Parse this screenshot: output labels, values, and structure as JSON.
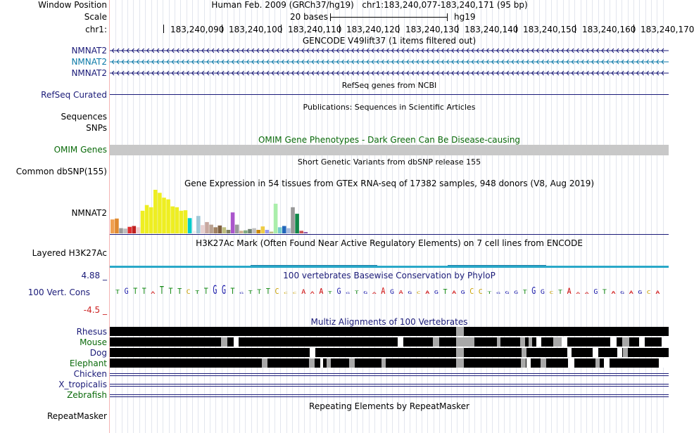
{
  "header": {
    "assembly": "Human Feb. 2009 (GRCh37/hg19)",
    "position": "chr1:183,240,077-183,240,171 (95 bp)",
    "scale_text": "20 bases",
    "scale_db": "hg19",
    "chrom_label": "chr1:",
    "ticks": [
      "183,240,090",
      "183,240,100",
      "183,240,110",
      "183,240,120",
      "183,240,130",
      "183,240,140",
      "183,240,150",
      "183,240,160",
      "183,240,170"
    ]
  },
  "left_labels": {
    "window_position": "Window Position",
    "scale": "Scale",
    "chr": "chr1:",
    "nmnat2_1": "NMNAT2",
    "nmnat2_2": "NMNAT2",
    "nmnat2_3": "NMNAT2",
    "refseq": "RefSeq Curated",
    "sequences": "Sequences",
    "snps": "SNPs",
    "omim": "OMIM Genes",
    "common_dbsnp": "Common dbSNP(155)",
    "gtex_gene": "NMNAT2",
    "h3k27ac": "Layered H3K27Ac",
    "cons_max": "4.88 _",
    "cons_label": "100 Vert. Cons",
    "cons_min": "-4.5 _",
    "species": [
      "Rhesus",
      "Mouse",
      "Dog",
      "Elephant",
      "Chicken",
      "X_tropicalis",
      "Zebrafish"
    ],
    "repeatmasker": "RepeatMasker"
  },
  "track_titles": {
    "gencode": "GENCODE V49lift37 (1 items filtered out)",
    "refseq": "RefSeq genes from NCBI",
    "publications": "Publications: Sequences in Scientific Articles",
    "omim": "OMIM Gene Phenotypes - Dark Green Can Be Disease-causing",
    "dbsnp": "Short Genetic Variants from dbSNP release 155",
    "gtex": "Gene Expression in 54 tissues from GTEx RNA-seq of 17382 samples, 948 donors (V8, Aug 2019)",
    "h3k27ac": "H3K27Ac Mark (Often Found Near Active Regulatory Elements) on 7 cell lines from ENCODE",
    "phylop": "100 vertebrates Basewise Conservation by PhyloP",
    "multiz": "Multiz Alignments of 100 Vertebrates",
    "repeatmasker": "Repeating Elements by RepeatMasker"
  },
  "colors": {
    "nav_blue": "#1a1a78",
    "teal": "#0b7aa8",
    "omim_green": "#0a6a0a",
    "species_green": "#0a6a0a",
    "h3k27ac_cyan": "#2aa8c8"
  },
  "gtex_bars": [
    {
      "v": 0.32,
      "c": "#f0a050"
    },
    {
      "v": 0.34,
      "c": "#e08a30"
    },
    {
      "v": 0.12,
      "c": "#9a9a9a"
    },
    {
      "v": 0.11,
      "c": "#bdbdbd"
    },
    {
      "v": 0.15,
      "c": "#e03030"
    },
    {
      "v": 0.17,
      "c": "#c02020"
    },
    {
      "v": 0.14,
      "c": "#f0d0d0"
    },
    {
      "v": 0.52,
      "c": "#eeee22"
    },
    {
      "v": 0.65,
      "c": "#eeee22"
    },
    {
      "v": 0.6,
      "c": "#eeee22"
    },
    {
      "v": 1.0,
      "c": "#eeee22"
    },
    {
      "v": 0.93,
      "c": "#eeee22"
    },
    {
      "v": 0.82,
      "c": "#eeee22"
    },
    {
      "v": 0.78,
      "c": "#eeee22"
    },
    {
      "v": 0.62,
      "c": "#eeee22"
    },
    {
      "v": 0.6,
      "c": "#eeee22"
    },
    {
      "v": 0.52,
      "c": "#eeee22"
    },
    {
      "v": 0.53,
      "c": "#eeee22"
    },
    {
      "v": 0.35,
      "c": "#00cccc"
    },
    {
      "v": 0.06,
      "c": "#eeeeee"
    },
    {
      "v": 0.4,
      "c": "#a0c8d8"
    },
    {
      "v": 0.19,
      "c": "#e8d0d0"
    },
    {
      "v": 0.26,
      "c": "#c8a8a0"
    },
    {
      "v": 0.2,
      "c": "#b8a090"
    },
    {
      "v": 0.14,
      "c": "#a08060"
    },
    {
      "v": 0.18,
      "c": "#806040"
    },
    {
      "v": 0.14,
      "c": "#c0c080"
    },
    {
      "v": 0.08,
      "c": "#808060"
    },
    {
      "v": 0.48,
      "c": "#aa55cc"
    },
    {
      "v": 0.2,
      "c": "#9a9a9a"
    },
    {
      "v": 0.06,
      "c": "#d0b090"
    },
    {
      "v": 0.07,
      "c": "#80aa80"
    },
    {
      "v": 0.1,
      "c": "#708070"
    },
    {
      "v": 0.12,
      "c": "#c0c0c0"
    },
    {
      "v": 0.08,
      "c": "#cc8800"
    },
    {
      "v": 0.16,
      "c": "#eecc44"
    },
    {
      "v": 0.08,
      "c": "#9999ee"
    },
    {
      "v": 0.04,
      "c": "#c0c080"
    },
    {
      "v": 0.68,
      "c": "#aaeeaa"
    },
    {
      "v": 0.14,
      "c": "#77cccc"
    },
    {
      "v": 0.17,
      "c": "#2266bb"
    },
    {
      "v": 0.12,
      "c": "#aabbdd"
    },
    {
      "v": 0.6,
      "c": "#999999"
    },
    {
      "v": 0.45,
      "c": "#11884a"
    },
    {
      "v": 0.06,
      "c": "#cc5555"
    },
    {
      "v": 0.03,
      "c": "#8855aa"
    }
  ],
  "phylop_bases": [
    {
      "b": "T",
      "h": 0.45
    },
    {
      "b": "G",
      "h": 0.7
    },
    {
      "b": "T",
      "h": 0.7
    },
    {
      "b": "T",
      "h": 0.7
    },
    {
      "b": "A",
      "h": 0.25
    },
    {
      "b": "T",
      "h": 0.9
    },
    {
      "b": "T",
      "h": 0.7
    },
    {
      "b": "T",
      "h": 0.6
    },
    {
      "b": "C",
      "h": 0.5
    },
    {
      "b": "T",
      "h": 0.4
    },
    {
      "b": "T",
      "h": 0.7
    },
    {
      "b": "G",
      "h": 1.0
    },
    {
      "b": "G",
      "h": 1.0
    },
    {
      "b": "T",
      "h": 0.7
    },
    {
      "b": "G",
      "h": 0.15
    },
    {
      "b": "T",
      "h": 0.4
    },
    {
      "b": "T",
      "h": 0.5
    },
    {
      "b": "T",
      "h": 0.6
    },
    {
      "b": "C",
      "h": 0.6
    },
    {
      "b": "C",
      "h": 0.2
    },
    {
      "b": "C",
      "h": 0.2
    },
    {
      "b": "A",
      "h": 0.5
    },
    {
      "b": "A",
      "h": 0.25
    },
    {
      "b": "A",
      "h": 0.6
    },
    {
      "b": "T",
      "h": 0.3
    },
    {
      "b": "G",
      "h": 0.7
    },
    {
      "b": "G",
      "h": 0.2
    },
    {
      "b": "T",
      "h": 0.35
    },
    {
      "b": "G",
      "h": 0.3
    },
    {
      "b": "A",
      "h": 0.15
    },
    {
      "b": "A",
      "h": 0.75
    },
    {
      "b": "G",
      "h": 0.5
    },
    {
      "b": "A",
      "h": 0.4
    },
    {
      "b": "G",
      "h": 0.3
    },
    {
      "b": "C",
      "h": 0.25
    },
    {
      "b": "A",
      "h": 0.35
    },
    {
      "b": "G",
      "h": 0.4
    },
    {
      "b": "T",
      "h": 0.55
    },
    {
      "b": "A",
      "h": 0.35
    },
    {
      "b": "G",
      "h": 0.4
    },
    {
      "b": "C",
      "h": 0.6
    },
    {
      "b": "C",
      "h": 0.55
    },
    {
      "b": "T",
      "h": 0.25
    },
    {
      "b": "G",
      "h": 0.2
    },
    {
      "b": "G",
      "h": 0.3
    },
    {
      "b": "G",
      "h": 0.35
    },
    {
      "b": "T",
      "h": 0.45
    },
    {
      "b": "G",
      "h": 0.8
    },
    {
      "b": "G",
      "h": 0.5
    },
    {
      "b": "C",
      "h": 0.3
    },
    {
      "b": "T",
      "h": 0.45
    },
    {
      "b": "A",
      "h": 0.7
    },
    {
      "b": "A",
      "h": 0.2
    },
    {
      "b": "A",
      "h": 0.2
    },
    {
      "b": "G",
      "h": 0.55
    },
    {
      "b": "T",
      "h": 0.5
    },
    {
      "b": "A",
      "h": 0.3
    },
    {
      "b": "G",
      "h": 0.3
    },
    {
      "b": "A",
      "h": 0.35
    },
    {
      "b": "G",
      "h": 0.4
    },
    {
      "b": "C",
      "h": 0.4
    },
    {
      "b": "A",
      "h": 0.35
    }
  ],
  "alignments": [
    {
      "species": "Rhesus",
      "gaps": [
        {
          "s": 492,
          "e": 503,
          "t": "gray"
        }
      ]
    },
    {
      "species": "Mouse",
      "gaps": [
        {
          "s": 158,
          "e": 167,
          "t": "gray"
        },
        {
          "s": 176,
          "e": 183,
          "t": "white"
        },
        {
          "s": 409,
          "e": 417,
          "t": "white"
        },
        {
          "s": 459,
          "e": 468,
          "t": "gray"
        },
        {
          "s": 492,
          "e": 518,
          "t": "gray"
        },
        {
          "s": 550,
          "e": 555,
          "t": "gray"
        },
        {
          "s": 583,
          "e": 590,
          "t": "gray"
        },
        {
          "s": 595,
          "e": 600,
          "t": "gray"
        },
        {
          "s": 606,
          "e": 613,
          "t": "white"
        },
        {
          "s": 630,
          "e": 642,
          "t": "gray"
        },
        {
          "s": 642,
          "e": 650,
          "t": "white"
        },
        {
          "s": 711,
          "e": 720,
          "t": "white"
        },
        {
          "s": 728,
          "e": 738,
          "t": "gray"
        },
        {
          "s": 752,
          "e": 760,
          "t": "white"
        },
        {
          "s": 784,
          "e": 794,
          "t": "white"
        }
      ]
    },
    {
      "species": "Dog",
      "gaps": [
        {
          "s": 284,
          "e": 292,
          "t": "white"
        },
        {
          "s": 492,
          "e": 503,
          "t": "gray"
        },
        {
          "s": 585,
          "e": 592,
          "t": "gray"
        },
        {
          "s": 650,
          "e": 656,
          "t": "white"
        },
        {
          "s": 686,
          "e": 694,
          "t": "white"
        },
        {
          "s": 721,
          "e": 728,
          "t": "white"
        },
        {
          "s": 729,
          "e": 736,
          "t": "gray"
        }
      ]
    },
    {
      "species": "Elephant",
      "gaps": [
        {
          "s": 216,
          "e": 224,
          "t": "gray"
        },
        {
          "s": 283,
          "e": 291,
          "t": "gray"
        },
        {
          "s": 299,
          "e": 303,
          "t": "white"
        },
        {
          "s": 308,
          "e": 314,
          "t": "gray"
        },
        {
          "s": 340,
          "e": 348,
          "t": "gray"
        },
        {
          "s": 386,
          "e": 392,
          "t": "gray"
        },
        {
          "s": 492,
          "e": 503,
          "t": "gray"
        },
        {
          "s": 584,
          "e": 591,
          "t": "gray"
        },
        {
          "s": 592,
          "e": 598,
          "t": "white"
        },
        {
          "s": 612,
          "e": 620,
          "t": "gray"
        },
        {
          "s": 651,
          "e": 660,
          "t": "white"
        },
        {
          "s": 690,
          "e": 696,
          "t": "gray"
        },
        {
          "s": 702,
          "e": 710,
          "t": "white"
        },
        {
          "s": 780,
          "e": 794,
          "t": "white"
        }
      ]
    }
  ]
}
